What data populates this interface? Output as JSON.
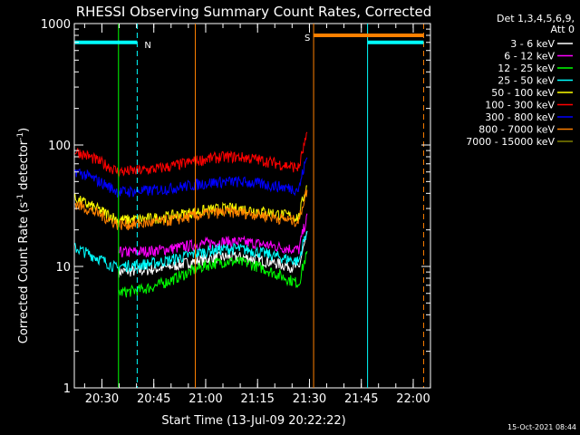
{
  "chart_data": {
    "type": "line",
    "title": "RHESSI Observing Summary Count Rates, Corrected",
    "xlabel": "Start Time (13-Jul-09 20:22:22)",
    "ylabel_main": "Corrected Count Rate (s",
    "ylabel_exp1": "-1",
    "ylabel_mid": " detector",
    "ylabel_exp2": "-1",
    "ylabel_end": ")",
    "y_scale": "log",
    "ylim": [
      1,
      1000
    ],
    "y_ticks": [
      {
        "value": 1,
        "label": "1"
      },
      {
        "value": 10,
        "label": "10"
      },
      {
        "value": 100,
        "label": "100"
      },
      {
        "value": 1000,
        "label": "1000"
      }
    ],
    "xlim_minutes": [
      20.367,
      22.083
    ],
    "x_ticks": [
      {
        "value": 20.5,
        "label": "20:30"
      },
      {
        "value": 20.75,
        "label": "20:45"
      },
      {
        "value": 21.0,
        "label": "21:00"
      },
      {
        "value": 21.25,
        "label": "21:15"
      },
      {
        "value": 21.5,
        "label": "21:30"
      },
      {
        "value": 21.75,
        "label": "21:45"
      },
      {
        "value": 22.0,
        "label": "22:00"
      }
    ],
    "legend_header_1": "Det 1,3,4,5,6,9,",
    "legend_header_2": "Att 0",
    "legend_placement": "right",
    "series": [
      {
        "name": "3 - 6 keV",
        "color": "#ffffff",
        "level_a": 9,
        "level_b": 12,
        "dip": 7
      },
      {
        "name": "6 - 12 keV",
        "color": "#ff00ff",
        "level_a": 13,
        "level_b": 16,
        "dip": 11
      },
      {
        "name": "12 - 25 keV",
        "color": "#00ff00",
        "level_a": 6,
        "level_b": 11,
        "dip": 6
      },
      {
        "name": "25 - 50 keV",
        "color": "#00ffff",
        "level_a": 10,
        "level_b": 14,
        "dip": 9
      },
      {
        "name": "50 - 100 keV",
        "color": "#ffff00",
        "level_a": 24,
        "level_b": 30,
        "dip": 23
      },
      {
        "name": "100 - 300 keV",
        "color": "#ff0000",
        "level_a": 60,
        "level_b": 80,
        "dip": 55
      },
      {
        "name": "300 - 800 keV",
        "color": "#0000ff",
        "level_a": 41,
        "level_b": 50,
        "dip": 37
      },
      {
        "name": "800 - 7000 keV",
        "color": "#ff8000",
        "level_a": 22,
        "level_b": 28,
        "dip": 20
      },
      {
        "name": "7000 - 15000 keV",
        "color": "#808000",
        "level_a": 0,
        "level_b": 0,
        "dip": 0
      }
    ],
    "flags": [
      {
        "label": "N",
        "color": "#00ffff",
        "value": 700,
        "segments": [
          [
            20.37,
            20.67
          ],
          [
            21.78,
            22.05
          ]
        ]
      },
      {
        "label": "S",
        "color": "#ff8000",
        "value": 800,
        "segments": [
          [
            21.52,
            22.05
          ]
        ]
      }
    ],
    "vlines": [
      {
        "x": 20.67,
        "color": "#00ffff",
        "dashed": true
      },
      {
        "x": 21.78,
        "color": "#00ffff",
        "dashed": false
      },
      {
        "x": 21.52,
        "color": "#ff8000",
        "dashed": false
      },
      {
        "x": 22.05,
        "color": "#ff8000",
        "dashed": true
      },
      {
        "x": 20.58,
        "color": "#00ff00",
        "dashed": false
      },
      {
        "x": 20.95,
        "color": "#ff8000",
        "dashed": false
      }
    ],
    "footer_timestamp": "15-Oct-2021 08:44"
  }
}
